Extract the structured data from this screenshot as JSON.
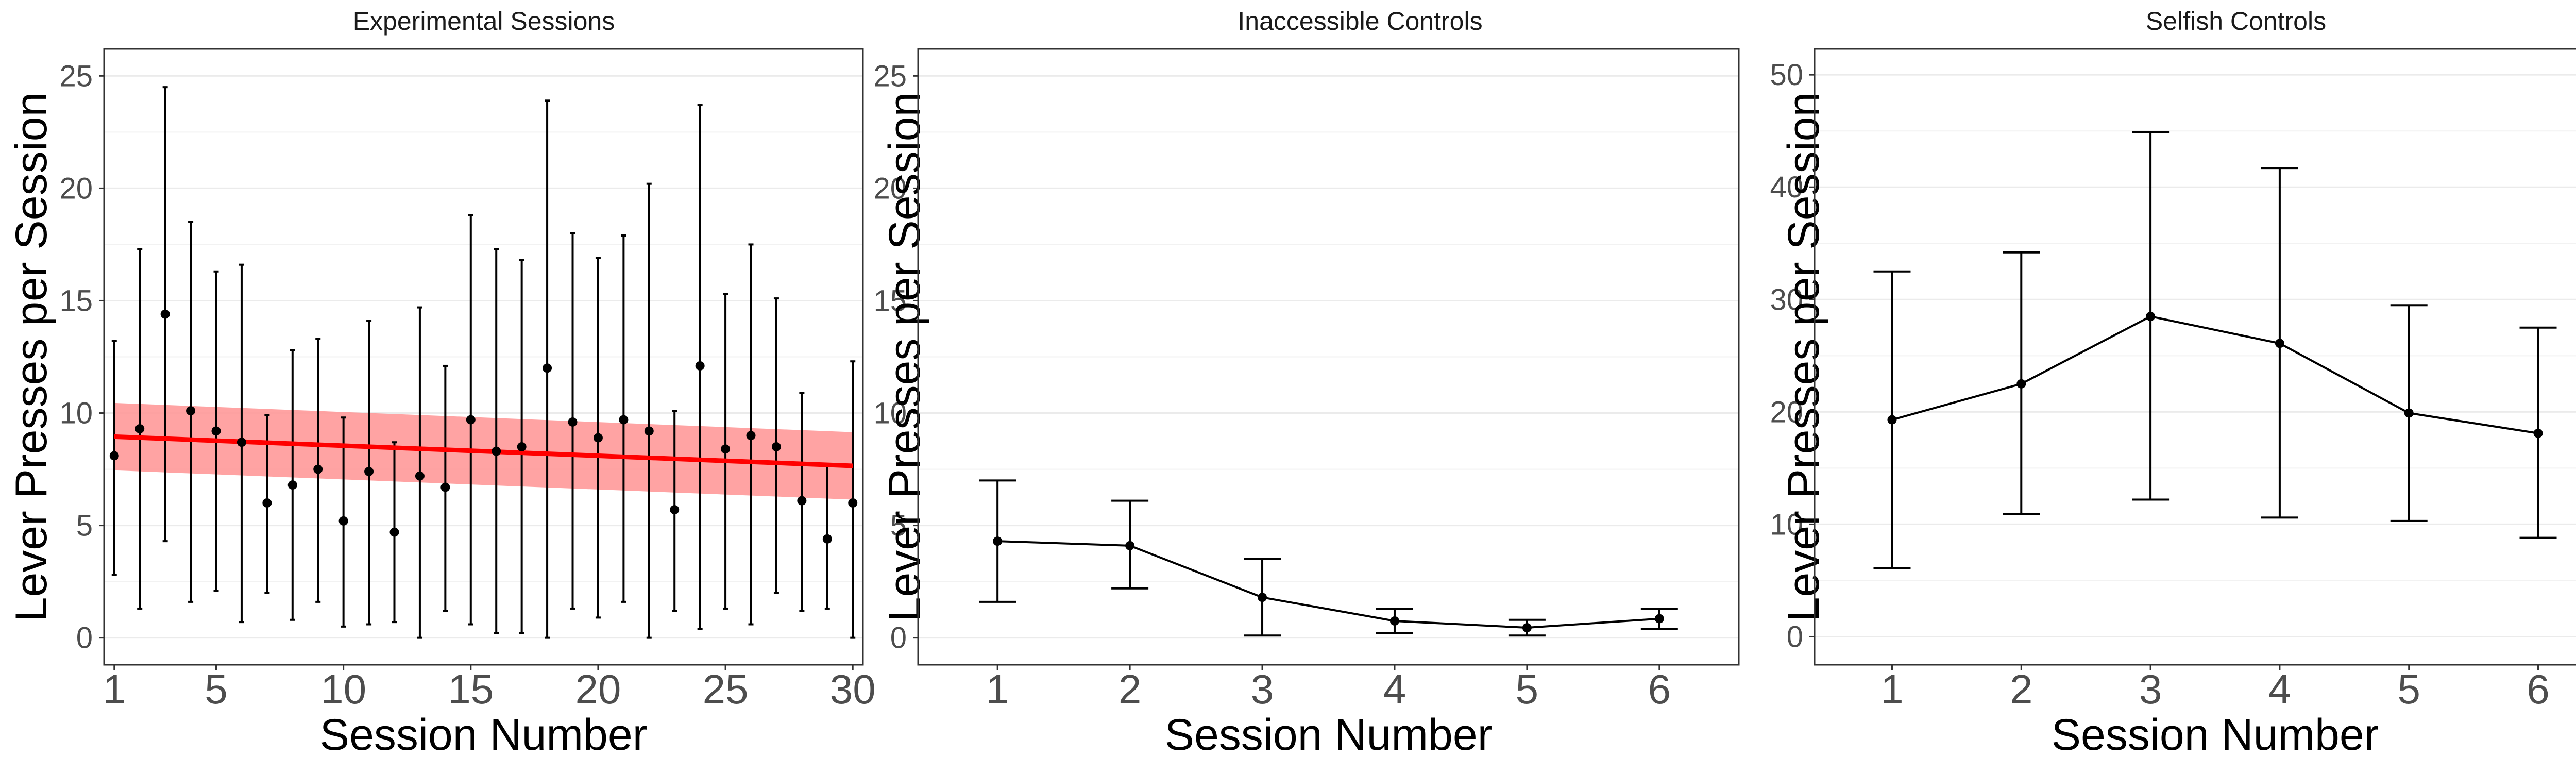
{
  "chart_data": [
    {
      "type": "scatter",
      "title": "Experimental Sessions",
      "xlabel": "Session Number",
      "ylabel": "Lever Presses per Session",
      "xlim": [
        0.6,
        30.4
      ],
      "ylim": [
        -1.2,
        26.2
      ],
      "xticks": [
        1,
        5,
        10,
        15,
        20,
        25,
        30
      ],
      "yticks": [
        0,
        5,
        10,
        15,
        20,
        25
      ],
      "grid": true,
      "points": {
        "x": [
          1,
          2,
          3,
          4,
          5,
          6,
          7,
          8,
          9,
          10,
          11,
          12,
          13,
          14,
          15,
          16,
          17,
          18,
          19,
          20,
          21,
          22,
          23,
          24,
          25,
          26,
          27,
          28,
          29,
          30
        ],
        "y": [
          8.1,
          9.3,
          14.4,
          10.1,
          9.2,
          8.7,
          6.0,
          6.8,
          7.5,
          5.2,
          7.4,
          4.7,
          7.2,
          6.7,
          9.7,
          8.3,
          8.5,
          12.0,
          9.6,
          8.9,
          9.7,
          9.2,
          5.7,
          12.1,
          8.4,
          9.0,
          8.5,
          6.1,
          4.4,
          6.0
        ],
        "err_low": [
          2.8,
          1.3,
          4.3,
          1.6,
          2.1,
          0.7,
          2.0,
          0.8,
          1.6,
          0.5,
          0.6,
          0.7,
          0.0,
          1.2,
          0.6,
          0.2,
          0.2,
          0.0,
          1.3,
          0.9,
          1.6,
          0.0,
          1.2,
          0.4,
          1.3,
          0.6,
          2.0,
          1.2,
          1.3,
          0.0
        ],
        "err_high": [
          13.2,
          17.3,
          24.5,
          18.5,
          16.3,
          16.6,
          9.9,
          12.8,
          13.3,
          9.8,
          14.1,
          8.7,
          14.7,
          12.1,
          18.8,
          17.3,
          16.8,
          23.9,
          18.0,
          16.9,
          17.9,
          20.2,
          10.1,
          23.7,
          15.3,
          17.5,
          15.1,
          10.9,
          7.7,
          12.3
        ]
      },
      "trend": {
        "color": "#ff0000",
        "band_color": "#ff9999",
        "x": [
          1,
          30
        ],
        "y": [
          8.95,
          7.65
        ],
        "band_low": [
          7.45,
          6.15
        ],
        "band_high": [
          10.45,
          9.15
        ]
      }
    },
    {
      "type": "line",
      "title": "Inaccessible Controls",
      "xlabel": "Session Number",
      "ylabel": "Lever Presses per Session",
      "xlim": [
        0.4,
        6.6
      ],
      "ylim": [
        -1.2,
        26.2
      ],
      "xticks": [
        1,
        2,
        3,
        4,
        5,
        6
      ],
      "yticks": [
        0,
        5,
        10,
        15,
        20,
        25
      ],
      "grid": true,
      "series": [
        {
          "x": [
            1,
            2,
            3,
            4,
            5,
            6
          ],
          "values": [
            4.3,
            4.1,
            1.8,
            0.75,
            0.45,
            0.85
          ],
          "err_low": [
            1.6,
            2.2,
            0.1,
            0.2,
            0.1,
            0.4
          ],
          "err_high": [
            7.0,
            6.1,
            3.5,
            1.3,
            0.8,
            1.3
          ]
        }
      ]
    },
    {
      "type": "line",
      "title": "Selfish Controls",
      "xlabel": "Session Number",
      "ylabel": "Lever Presses per Session",
      "xlim": [
        0.4,
        6.6
      ],
      "ylim": [
        -2.5,
        52.3
      ],
      "xticks": [
        1,
        2,
        3,
        4,
        5,
        6
      ],
      "yticks": [
        0,
        10,
        20,
        30,
        40,
        50
      ],
      "grid": true,
      "series": [
        {
          "x": [
            1,
            2,
            3,
            4,
            5,
            6
          ],
          "values": [
            19.3,
            22.5,
            28.5,
            26.1,
            19.9,
            18.1
          ],
          "err_low": [
            6.1,
            10.9,
            12.2,
            10.6,
            10.3,
            8.8
          ],
          "err_high": [
            32.5,
            34.2,
            44.9,
            41.7,
            29.5,
            27.5
          ]
        }
      ]
    }
  ]
}
